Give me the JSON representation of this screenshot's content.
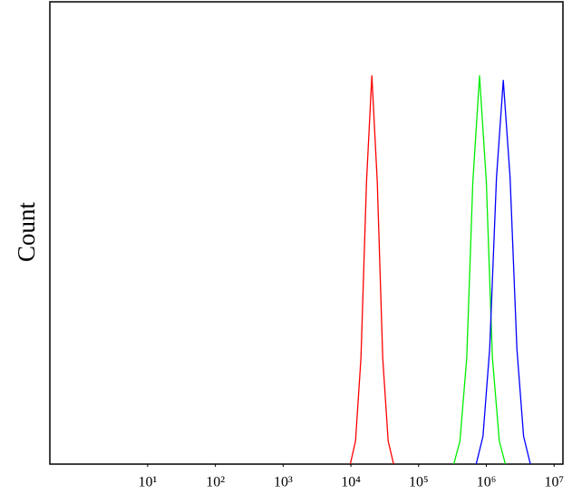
{
  "chart_data": {
    "type": "line",
    "y_label": "Count",
    "log_x": true,
    "xlim": [
      0.36,
      13500000
    ],
    "ylim": [
      0,
      1
    ],
    "xticks": [
      {
        "value": 10,
        "label": "10¹"
      },
      {
        "value": 100,
        "label": "10²"
      },
      {
        "value": 1000,
        "label": "10³"
      },
      {
        "value": 10000,
        "label": "10⁴"
      },
      {
        "value": 100000,
        "label": "10⁵"
      },
      {
        "value": 1000000,
        "label": "10⁶"
      },
      {
        "value": 10000000,
        "label": "10⁷"
      }
    ],
    "series": [
      {
        "color": "#ff0000",
        "x": [
          9800,
          11700,
          14100,
          17000,
          20400,
          24500,
          29500,
          35500,
          42700
        ],
        "values": [
          0,
          0.05,
          0.23,
          0.61,
          0.84,
          0.61,
          0.23,
          0.05,
          0
        ]
      },
      {
        "color": "#00ee00",
        "x": [
          331000,
          407000,
          513000,
          631000,
          794000,
          1000000,
          1230000,
          1550000,
          1910000
        ],
        "values": [
          0,
          0.05,
          0.23,
          0.61,
          0.84,
          0.61,
          0.23,
          0.05,
          0
        ]
      },
      {
        "color": "#0000ff",
        "x": [
          708000,
          891000,
          1120000,
          1410000,
          1780000,
          2240000,
          2820000,
          3550000,
          4470000
        ],
        "values": [
          0,
          0.06,
          0.25,
          0.62,
          0.83,
          0.62,
          0.25,
          0.06,
          0
        ]
      }
    ]
  }
}
